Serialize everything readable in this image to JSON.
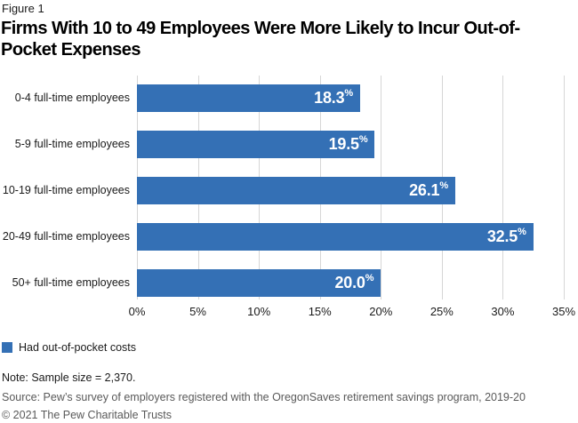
{
  "figure_label": "Figure 1",
  "title_lines": [
    "Firms With 10 to 49 Employees Were More Likely to Incur Out-of-",
    "Pocket Expenses"
  ],
  "chart_data": {
    "type": "bar",
    "orientation": "horizontal",
    "title": "Firms With 10 to 49 Employees Were More Likely to Incur Out-of-Pocket Expenses",
    "categories": [
      "0-4 full-time employees",
      "5-9 full-time employees",
      "10-19 full-time employees",
      "20-49 full-time employees",
      "50+ full-time employees"
    ],
    "series": [
      {
        "name": "Had out-of-pocket costs",
        "values": [
          18.3,
          19.5,
          26.1,
          32.5,
          20.0
        ]
      }
    ],
    "value_labels": [
      "18.3",
      "19.5",
      "26.1",
      "32.5",
      "20.0"
    ],
    "value_suffix": "%",
    "x_tick_labels": [
      "0%",
      "5%",
      "10%",
      "15%",
      "20%",
      "25%",
      "30%",
      "35%"
    ],
    "x_tick_values": [
      0,
      5,
      10,
      15,
      20,
      25,
      30,
      35
    ],
    "xlim": [
      0,
      35
    ],
    "grid": true,
    "legend_position": "bottom-left",
    "bar_color": "#3470b5",
    "gridline_color": "#d6d6d6"
  },
  "legend": {
    "items": [
      {
        "label": "Had out-of-pocket costs",
        "color": "#3470b5"
      }
    ]
  },
  "note": "Note: Sample size = 2,370.",
  "source": "Source: Pew’s survey of employers registered with the OregonSaves retirement savings program, 2019-20",
  "copyright": "© 2021 The Pew Charitable Trusts"
}
